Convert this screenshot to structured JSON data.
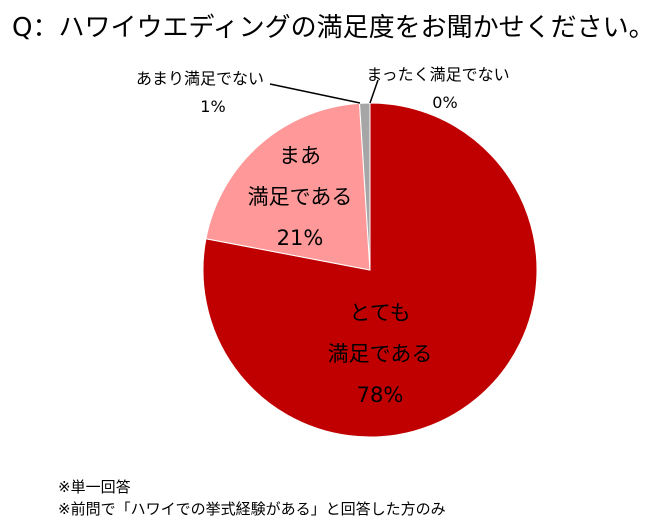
{
  "title": "Q：ハワイウエディングの満足度をお聞かせください。",
  "chart_data": {
    "type": "pie",
    "slices": [
      {
        "label_lines": [
          "とても",
          "満足である"
        ],
        "value": 78,
        "value_label": "78%",
        "color": "#c00000",
        "text_color": "#ffffff"
      },
      {
        "label_lines": [
          "まあ",
          "満足である"
        ],
        "value": 21,
        "value_label": "21%",
        "color": "#ff9999",
        "text_color": "#000000"
      },
      {
        "label_lines": [
          "あまり満足でない"
        ],
        "value": 1,
        "value_label": "1%",
        "color": "#a6a6a6",
        "text_color": "#000000"
      },
      {
        "label_lines": [
          "まったく満足でない"
        ],
        "value": 0,
        "value_label": "0%",
        "color": "#bfbfbf",
        "text_color": "#000000"
      }
    ],
    "legend": "none"
  },
  "notes": [
    "※単一回答",
    "※前問で「ハワイでの挙式経験がある」と回答した方のみ"
  ]
}
